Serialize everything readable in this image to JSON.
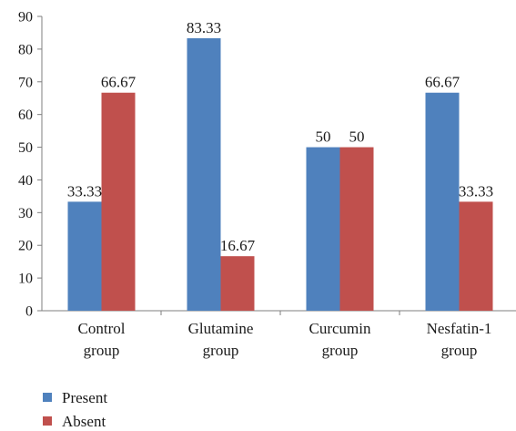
{
  "chart_data": {
    "type": "bar",
    "categories": [
      [
        "Control",
        "group"
      ],
      [
        "Glutamine",
        "group"
      ],
      [
        "Curcumin",
        "group"
      ],
      [
        "Nesfatin-1",
        "group"
      ]
    ],
    "series": [
      {
        "name": "Present",
        "values": [
          33.33,
          83.33,
          50,
          66.67
        ],
        "labels": [
          "33.33",
          "83.33",
          "50",
          "66.67"
        ],
        "color": "#4f81bd"
      },
      {
        "name": "Absent",
        "values": [
          66.67,
          16.67,
          50,
          33.33
        ],
        "labels": [
          "66.67",
          "16.67",
          "50",
          "33.33"
        ],
        "color": "#c0504d"
      }
    ],
    "ylim": [
      0,
      90
    ],
    "yticks": [
      0,
      10,
      20,
      30,
      40,
      50,
      60,
      70,
      80,
      90
    ],
    "grid": false,
    "legend_position": "bottom-left"
  }
}
